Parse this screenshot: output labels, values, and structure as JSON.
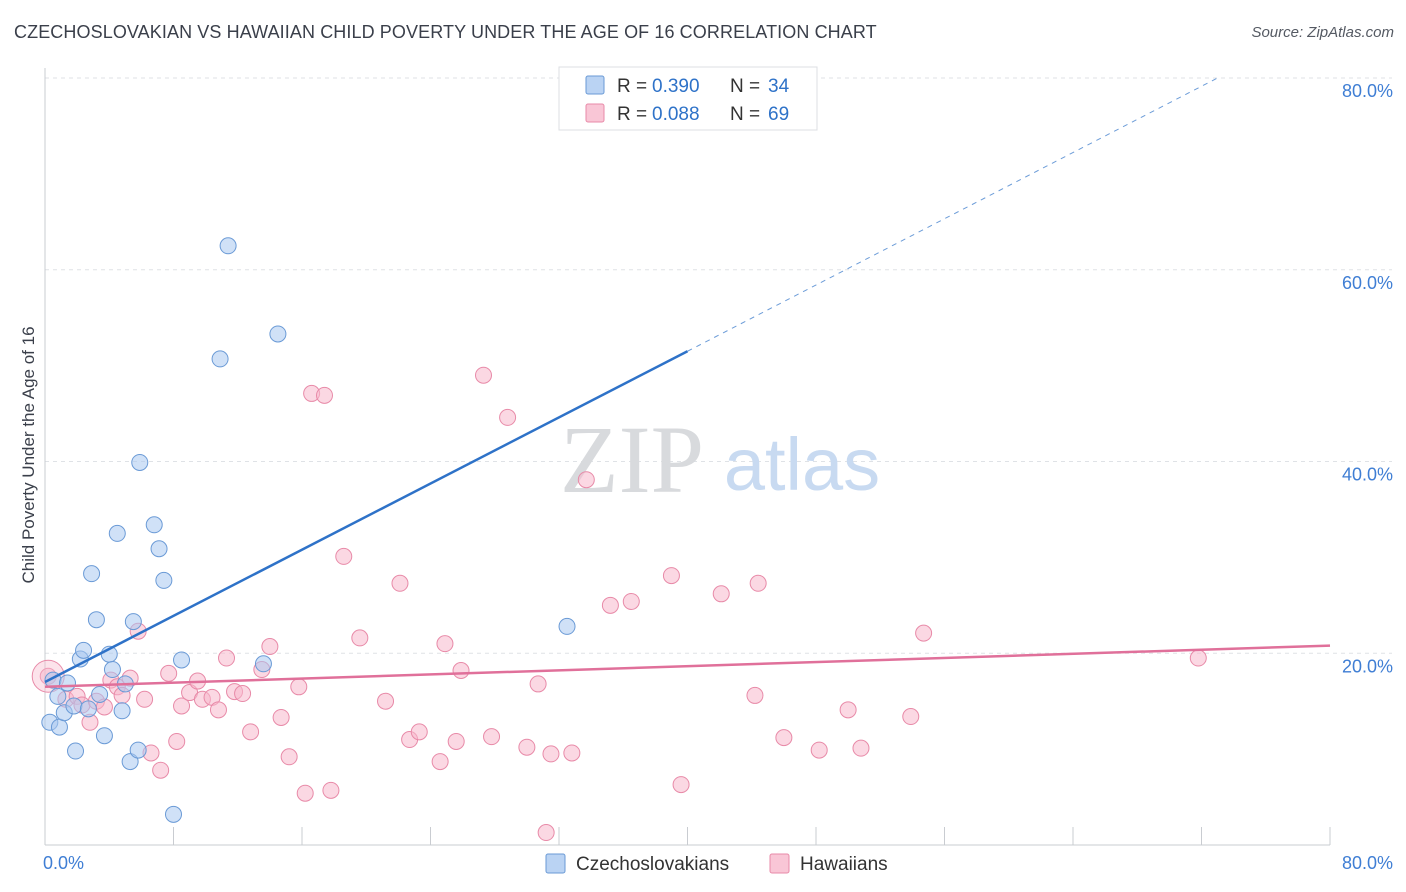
{
  "chart_data": {
    "type": "scatter",
    "title": "CZECHOSLOVAKIAN VS HAWAIIAN CHILD POVERTY UNDER THE AGE OF 16 CORRELATION CHART",
    "source": "Source: ZipAtlas.com",
    "xlabel": "",
    "ylabel": "Child Poverty Under the Age of 16",
    "xlim": [
      0,
      80
    ],
    "ylim": [
      0,
      80
    ],
    "x_tick_labels": [
      "0.0%",
      "80.0%"
    ],
    "y_ticks": [
      {
        "value": 20,
        "label": "20.0%"
      },
      {
        "value": 40,
        "label": "40.0%"
      },
      {
        "value": 60,
        "label": "60.0%"
      },
      {
        "value": 80,
        "label": "80.0%"
      }
    ],
    "grid": true,
    "watermark": {
      "left": "ZIP",
      "right": "atlas"
    },
    "legend_placement": "top-center",
    "legend": [
      {
        "r_label": "R =",
        "r_value": "0.390",
        "n_label": "N =",
        "n_value": "34",
        "color": "#a9c8f0"
      },
      {
        "r_label": "R =",
        "r_value": "0.088",
        "n_label": "N =",
        "n_value": "69",
        "color": "#f7b8cc"
      }
    ],
    "series": [
      {
        "name": "Czechoslovakians",
        "fill": "#a9c8f0",
        "stroke": "#6a9ad6",
        "trend_color": "#2e72c8",
        "trend": {
          "x0": 0,
          "y0": 17.0,
          "x1": 40,
          "y1": 51.5,
          "dash_to_x": 73,
          "dash_to_y": 80
        },
        "points": [
          [
            0.3,
            12.8
          ],
          [
            0.5,
            17.2
          ],
          [
            0.8,
            15.5
          ],
          [
            0.9,
            12.3
          ],
          [
            1.2,
            13.8
          ],
          [
            1.4,
            16.9
          ],
          [
            1.8,
            14.5
          ],
          [
            1.9,
            9.8
          ],
          [
            2.2,
            19.4
          ],
          [
            2.4,
            20.3
          ],
          [
            2.7,
            14.2
          ],
          [
            2.9,
            28.3
          ],
          [
            3.2,
            23.5
          ],
          [
            3.4,
            15.7
          ],
          [
            3.7,
            11.4
          ],
          [
            4.0,
            19.9
          ],
          [
            4.2,
            18.3
          ],
          [
            4.5,
            32.5
          ],
          [
            4.8,
            14.0
          ],
          [
            5.0,
            16.8
          ],
          [
            5.3,
            8.7
          ],
          [
            5.5,
            23.3
          ],
          [
            5.8,
            9.9
          ],
          [
            5.9,
            39.9
          ],
          [
            6.8,
            33.4
          ],
          [
            7.1,
            30.9
          ],
          [
            7.4,
            27.6
          ],
          [
            8.0,
            3.2
          ],
          [
            8.5,
            19.3
          ],
          [
            10.9,
            50.7
          ],
          [
            11.4,
            62.5
          ],
          [
            13.6,
            18.9
          ],
          [
            14.5,
            53.3
          ],
          [
            32.5,
            22.8
          ]
        ]
      },
      {
        "name": "Hawaiians",
        "fill": "#f7b8cc",
        "stroke": "#e88aa8",
        "trend_color": "#e0709a",
        "trend": {
          "x0": 0,
          "y0": 16.5,
          "x1": 80,
          "y1": 20.8
        },
        "points": [
          [
            0.2,
            17.6
          ],
          [
            1.3,
            15.2
          ],
          [
            2.0,
            15.5
          ],
          [
            2.3,
            14.6
          ],
          [
            2.8,
            12.8
          ],
          [
            3.2,
            15.0
          ],
          [
            3.7,
            14.4
          ],
          [
            4.1,
            17.2
          ],
          [
            4.5,
            16.5
          ],
          [
            4.8,
            15.6
          ],
          [
            5.3,
            17.4
          ],
          [
            5.8,
            22.3
          ],
          [
            6.2,
            15.2
          ],
          [
            6.6,
            9.6
          ],
          [
            7.2,
            7.8
          ],
          [
            7.7,
            17.9
          ],
          [
            8.2,
            10.8
          ],
          [
            8.5,
            14.5
          ],
          [
            9.0,
            15.9
          ],
          [
            9.5,
            17.1
          ],
          [
            9.8,
            15.2
          ],
          [
            10.4,
            15.4
          ],
          [
            10.8,
            14.1
          ],
          [
            11.3,
            19.5
          ],
          [
            11.8,
            16.0
          ],
          [
            12.3,
            15.8
          ],
          [
            12.8,
            11.8
          ],
          [
            13.5,
            18.3
          ],
          [
            14.0,
            20.7
          ],
          [
            14.7,
            13.3
          ],
          [
            15.2,
            9.2
          ],
          [
            15.8,
            16.5
          ],
          [
            16.2,
            5.4
          ],
          [
            16.6,
            47.1
          ],
          [
            17.4,
            46.9
          ],
          [
            17.8,
            5.7
          ],
          [
            18.6,
            30.1
          ],
          [
            19.6,
            21.6
          ],
          [
            21.2,
            15.0
          ],
          [
            22.1,
            27.3
          ],
          [
            22.7,
            11.0
          ],
          [
            23.3,
            11.8
          ],
          [
            24.6,
            8.7
          ],
          [
            24.9,
            21.0
          ],
          [
            25.6,
            10.8
          ],
          [
            25.9,
            18.2
          ],
          [
            27.3,
            49.0
          ],
          [
            27.8,
            11.3
          ],
          [
            28.8,
            44.6
          ],
          [
            30.0,
            10.2
          ],
          [
            30.7,
            16.8
          ],
          [
            31.2,
            1.3
          ],
          [
            31.5,
            9.5
          ],
          [
            32.8,
            9.6
          ],
          [
            33.7,
            38.1
          ],
          [
            35.2,
            25.0
          ],
          [
            36.5,
            25.4
          ],
          [
            39.0,
            28.1
          ],
          [
            39.6,
            6.3
          ],
          [
            42.1,
            26.2
          ],
          [
            44.2,
            15.6
          ],
          [
            44.4,
            27.3
          ],
          [
            46.0,
            11.2
          ],
          [
            48.2,
            9.9
          ],
          [
            50.0,
            14.1
          ],
          [
            50.8,
            10.1
          ],
          [
            53.9,
            13.4
          ],
          [
            54.7,
            22.1
          ],
          [
            71.8,
            19.5
          ]
        ]
      }
    ]
  }
}
